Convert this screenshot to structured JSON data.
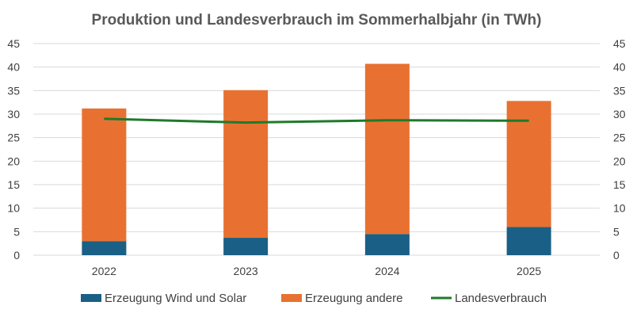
{
  "chart_data": {
    "type": "bar",
    "stacked": true,
    "title": "Produktion und Landesverbrauch im Sommerhalbjahr (in TWh)",
    "categories": [
      "2022",
      "2023",
      "2024",
      "2025"
    ],
    "series": [
      {
        "name": "Erzeugung Wind und Solar",
        "type": "bar",
        "color": "#1a5f85",
        "values": [
          3.0,
          3.7,
          4.5,
          6.0
        ]
      },
      {
        "name": "Erzeugung andere",
        "type": "bar",
        "color": "#e87131",
        "values": [
          28.2,
          31.4,
          36.2,
          26.8
        ]
      },
      {
        "name": "Landesverbrauch",
        "type": "line",
        "color": "#1e7a2a",
        "values": [
          29.0,
          28.2,
          28.7,
          28.6
        ]
      }
    ],
    "ylim": [
      0,
      45
    ],
    "yticks": [
      "0",
      "5",
      "10",
      "15",
      "20",
      "25",
      "30",
      "35",
      "40",
      "45"
    ],
    "secondary_yticks": [
      "0",
      "5",
      "10",
      "15",
      "20",
      "25",
      "30",
      "35",
      "40",
      "45"
    ],
    "grid": true,
    "legend": "bottom"
  }
}
